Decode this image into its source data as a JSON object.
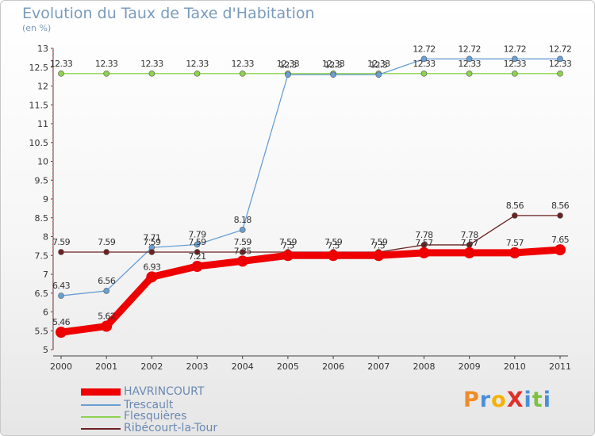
{
  "title": "Evolution du Taux de Taxe d'Habitation",
  "subtitle": "(en %)",
  "logo": {
    "text": "ProXiti",
    "colors": [
      "#f08c28",
      "#4a90d9",
      "#f6b100",
      "#e0302a",
      "#4a90d9",
      "#7cc143",
      "#4a90d9"
    ]
  },
  "chart_data": {
    "type": "line",
    "x": [
      "2000",
      "2001",
      "2002",
      "2003",
      "2004",
      "2005",
      "2006",
      "2007",
      "2008",
      "2009",
      "2010",
      "2011"
    ],
    "ylim": [
      5,
      13
    ],
    "yticks": [
      "5",
      "5.5",
      "6",
      "6.5",
      "7",
      "7.5",
      "8",
      "8.5",
      "9",
      "9.5",
      "10",
      "10.5",
      "11",
      "11.5",
      "12",
      "12.5",
      "13"
    ],
    "grid": false,
    "legend_position": "bottom-left",
    "series": [
      {
        "name": "HAVRINCOURT",
        "color": "#ee0000",
        "values": [
          5.46,
          5.62,
          6.93,
          7.21,
          7.35,
          7.5,
          7.5,
          7.5,
          7.57,
          7.57,
          7.57,
          7.65
        ],
        "labels": [
          "5.46",
          "5.62",
          "6.93",
          "7.21",
          "7.35",
          "7.5",
          "7.5",
          "7.5",
          "7.57",
          "7.57",
          "7.57",
          "7.65"
        ]
      },
      {
        "name": "Trescault",
        "color": "#6a9fd4",
        "values": [
          6.43,
          6.56,
          7.71,
          7.79,
          8.18,
          12.3,
          12.3,
          12.3,
          12.72,
          12.72,
          12.72,
          12.72
        ],
        "labels": [
          "6.43",
          "6.56",
          "7.71",
          "7.79",
          "8.18",
          "12.3",
          "12.3",
          "12.3",
          "12.72",
          "12.72",
          "12.72",
          "12.72"
        ]
      },
      {
        "name": "Flesquières",
        "color": "#8ed24f",
        "values": [
          12.33,
          12.33,
          12.33,
          12.33,
          12.33,
          12.33,
          12.33,
          12.33,
          12.33,
          12.33,
          12.33,
          12.33
        ],
        "labels": [
          "12.33",
          "12.33",
          "12.33",
          "12.33",
          "12.33",
          "12.33",
          "12.33",
          "12.33",
          "12.33",
          "12.33",
          "12.33",
          "12.33"
        ]
      },
      {
        "name": "Ribécourt-la-Tour",
        "color": "#6b2222",
        "values": [
          7.59,
          7.59,
          7.59,
          7.59,
          7.59,
          7.59,
          7.59,
          7.59,
          7.78,
          7.78,
          8.56,
          8.56
        ],
        "labels": [
          "7.59",
          "7.59",
          "7.59",
          "7.59",
          "7.59",
          "7.59",
          "7.59",
          "7.59",
          "7.78",
          "7.78",
          "8.56",
          "8.56"
        ]
      }
    ]
  }
}
